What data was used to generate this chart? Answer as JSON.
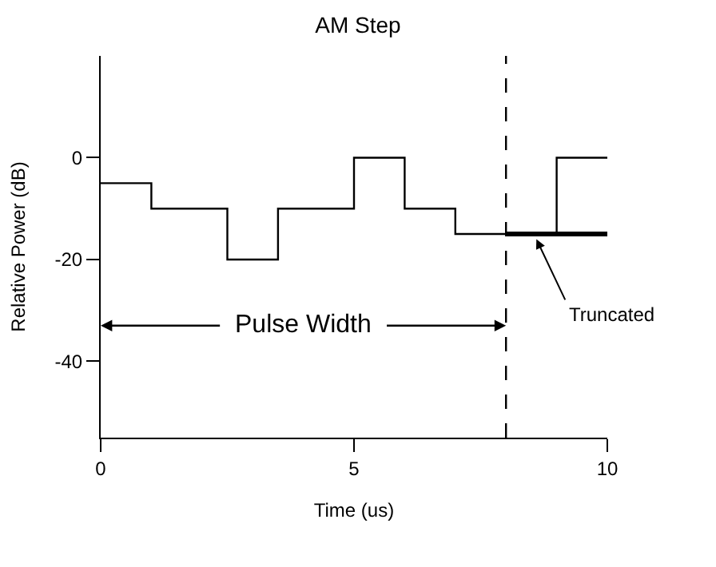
{
  "chart_data": {
    "type": "step",
    "title": "AM Step",
    "xlabel": "Time (us)",
    "ylabel": "Relative Power (dB)",
    "x": [
      0,
      1,
      2.5,
      3.5,
      5,
      6,
      7,
      8,
      9,
      10
    ],
    "series": [
      {
        "color": "#000000",
        "values": [
          -5,
          -10,
          -20,
          -10,
          0,
          -10,
          -15,
          -15,
          0,
          0
        ]
      },
      {
        "type": "line",
        "color": "#000000",
        "x": [
          8,
          10
        ],
        "values": [
          -15,
          -15
        ]
      }
    ],
    "xlim": [
      0,
      10
    ],
    "xticks": [
      0,
      5,
      10
    ],
    "ylim": [
      -55,
      20
    ],
    "yticks": [
      0,
      -20,
      -40
    ],
    "ref_lines": [
      {
        "axis": "x",
        "value": 8,
        "color": "#000000",
        "line_style": "dashed"
      }
    ],
    "annotations": [
      {
        "text": "Pulse Width",
        "x": 8,
        "y": -33
      },
      {
        "text": "Truncated",
        "x": 8.6,
        "y": -16
      }
    ],
    "marker": "none"
  }
}
